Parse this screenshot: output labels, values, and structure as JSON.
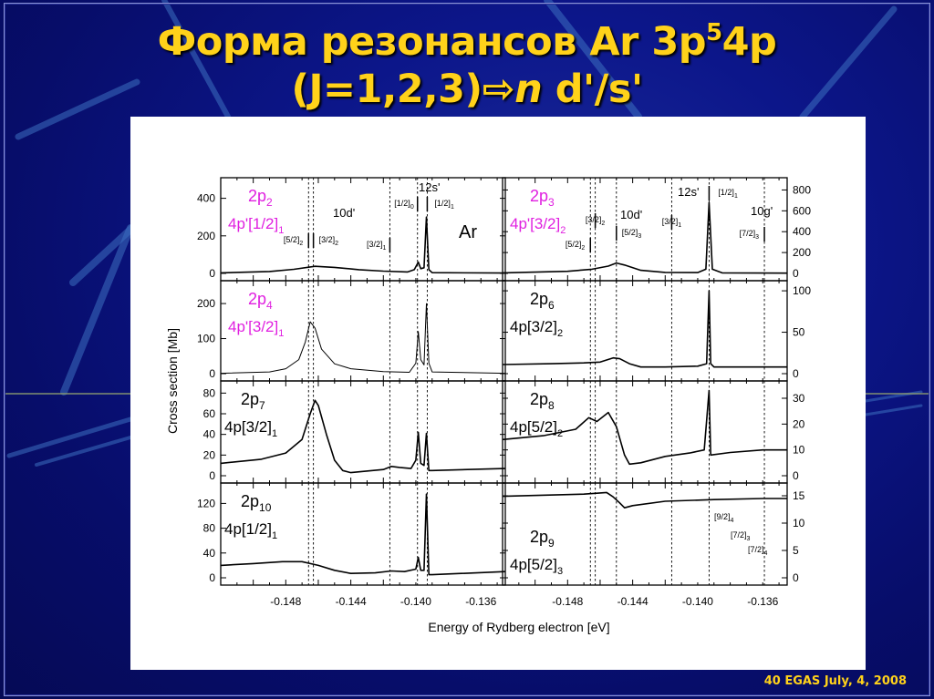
{
  "slide": {
    "title_line1_prefix": "Форма резонансов Ar 3p",
    "title_sup": "5",
    "title_line1_suffix": "4p",
    "title_line2_prefix": "(J=1,2,3)",
    "title_arrow": "⇨",
    "title_line2_n": "n",
    "title_line2_suffix": " d'/s'",
    "footer": "40 EGAS July, 4, 2008"
  },
  "chart_data": {
    "type": "line",
    "title": "Форма резонансов Ar 3p⁵4p (J=1,2,3) → n d'/s'",
    "xlabel": "Energy of Rydberg electron [eV]",
    "ylabel": "Cross section [Mb]",
    "element_label": "Ar",
    "x_ticks": [
      "-0.148",
      "-0.144",
      "-0.140",
      "-0.136"
    ],
    "xlim": [
      -0.152,
      -0.1345
    ],
    "grid": false,
    "legend": "none",
    "resonance_markers_left": [
      {
        "label": "[5/2]",
        "sub": "2",
        "x": -0.1466,
        "series": "10d'"
      },
      {
        "label": "[3/2]",
        "sub": "2",
        "x": -0.1463,
        "series": "10d'"
      },
      {
        "label": "[3/2]",
        "sub": "1",
        "x": -0.1416,
        "series": "10d'"
      },
      {
        "label": "[1/2]",
        "sub": "0",
        "x": -0.1399,
        "series": "12s'"
      },
      {
        "label": "[1/2]",
        "sub": "1",
        "x": -0.1393,
        "series": "12s'"
      }
    ],
    "resonance_markers_right": [
      {
        "label": "[5/2]",
        "sub": "2",
        "x": -0.1466,
        "series": "10d'"
      },
      {
        "label": "[3/2]",
        "sub": "2",
        "x": -0.1463,
        "series": "10d'"
      },
      {
        "label": "[5/2]",
        "sub": "3",
        "x": -0.145,
        "series": "10d'"
      },
      {
        "label": "[3/2]",
        "sub": "1",
        "x": -0.1416,
        "series": "10d'"
      },
      {
        "label": "[1/2]",
        "sub": "1",
        "x": -0.1393,
        "series": "12s'"
      },
      {
        "label": "[7/2]",
        "sub": "3",
        "x": -0.1359,
        "series": "10g'"
      }
    ],
    "group_labels_left": [
      "10d'",
      "12s'"
    ],
    "group_labels_right": [
      "10d'",
      "12s'",
      "10g'"
    ],
    "extra_right_labels": [
      {
        "label": "[9/2]",
        "sub": "4"
      },
      {
        "label": "[7/2]",
        "sub": "3"
      },
      {
        "label": "[7/2]",
        "sub": "4"
      }
    ],
    "panels": [
      {
        "id": "2p2",
        "column": "left",
        "row": 0,
        "state": "2p",
        "state_sub": "2",
        "config": "4p'[1/2]",
        "config_sub": "1",
        "color": "#e020e0",
        "yticks": [
          "0",
          "200",
          "400"
        ],
        "ylim": [
          0,
          500
        ],
        "points": [
          [
            -0.152,
            3
          ],
          [
            -0.149,
            10
          ],
          [
            -0.1475,
            22
          ],
          [
            -0.1462,
            38
          ],
          [
            -0.145,
            32
          ],
          [
            -0.1435,
            20
          ],
          [
            -0.142,
            12
          ],
          [
            -0.1405,
            8
          ],
          [
            -0.1401,
            20
          ],
          [
            -0.13985,
            60
          ],
          [
            -0.1397,
            25
          ],
          [
            -0.1395,
            30
          ],
          [
            -0.13935,
            300
          ],
          [
            -0.1392,
            20
          ],
          [
            -0.139,
            4
          ],
          [
            -0.1345,
            2
          ]
        ]
      },
      {
        "id": "2p4",
        "column": "left",
        "row": 1,
        "state": "2p",
        "state_sub": "4",
        "config": "4p'[3/2]",
        "config_sub": "1",
        "color": "#e020e0",
        "yticks": [
          "0",
          "100",
          "200"
        ],
        "ylim": [
          0,
          260
        ],
        "points": [
          [
            -0.152,
            1
          ],
          [
            -0.149,
            5
          ],
          [
            -0.148,
            14
          ],
          [
            -0.1472,
            40
          ],
          [
            -0.1468,
            90
          ],
          [
            -0.1465,
            148
          ],
          [
            -0.1462,
            130
          ],
          [
            -0.1458,
            70
          ],
          [
            -0.145,
            28
          ],
          [
            -0.144,
            14
          ],
          [
            -0.142,
            6
          ],
          [
            -0.1404,
            4
          ],
          [
            -0.14,
            30
          ],
          [
            -0.13985,
            120
          ],
          [
            -0.1397,
            40
          ],
          [
            -0.1395,
            25
          ],
          [
            -0.13935,
            200
          ],
          [
            -0.1392,
            30
          ],
          [
            -0.139,
            5
          ],
          [
            -0.1345,
            1
          ]
        ]
      },
      {
        "id": "2p7",
        "column": "left",
        "row": 2,
        "state": "2p",
        "state_sub": "7",
        "config": "4p[3/2]",
        "config_sub": "1",
        "color": "#000000",
        "yticks": [
          "0",
          "20",
          "40",
          "60",
          "80"
        ],
        "ylim": [
          0,
          90
        ],
        "points": [
          [
            -0.152,
            12
          ],
          [
            -0.1495,
            16
          ],
          [
            -0.148,
            22
          ],
          [
            -0.147,
            35
          ],
          [
            -0.1465,
            60
          ],
          [
            -0.1462,
            73
          ],
          [
            -0.146,
            68
          ],
          [
            -0.1455,
            40
          ],
          [
            -0.145,
            15
          ],
          [
            -0.1445,
            5
          ],
          [
            -0.144,
            3
          ],
          [
            -0.142,
            6
          ],
          [
            -0.1415,
            9
          ],
          [
            -0.141,
            8
          ],
          [
            -0.1403,
            7
          ],
          [
            -0.14,
            15
          ],
          [
            -0.13985,
            42
          ],
          [
            -0.1397,
            12
          ],
          [
            -0.1395,
            10
          ],
          [
            -0.13935,
            41
          ],
          [
            -0.1392,
            5
          ],
          [
            -0.139,
            5
          ],
          [
            -0.1345,
            7
          ]
        ]
      },
      {
        "id": "2p10",
        "column": "left",
        "row": 3,
        "state": "2p",
        "state_sub": "10",
        "config": "4p[1/2]",
        "config_sub": "1",
        "color": "#000000",
        "yticks": [
          "0",
          "40",
          "80",
          "120"
        ],
        "ylim": [
          0,
          150
        ],
        "points": [
          [
            -0.152,
            20
          ],
          [
            -0.15,
            23
          ],
          [
            -0.1482,
            26
          ],
          [
            -0.147,
            26
          ],
          [
            -0.146,
            20
          ],
          [
            -0.145,
            12
          ],
          [
            -0.144,
            7
          ],
          [
            -0.1425,
            8
          ],
          [
            -0.1415,
            11
          ],
          [
            -0.1407,
            10
          ],
          [
            -0.14,
            14
          ],
          [
            -0.13985,
            33
          ],
          [
            -0.1397,
            12
          ],
          [
            -0.1395,
            12
          ],
          [
            -0.13935,
            135
          ],
          [
            -0.1392,
            5
          ],
          [
            -0.139,
            5
          ],
          [
            -0.1345,
            10
          ]
        ]
      },
      {
        "id": "2p3",
        "column": "right",
        "row": 0,
        "state": "2p",
        "state_sub": "3",
        "config": "4p'[3/2]",
        "config_sub": "2",
        "color": "#e020e0",
        "yticks": [
          "0",
          "200",
          "400",
          "600",
          "800"
        ],
        "ylim": [
          0,
          900
        ],
        "points": [
          [
            -0.152,
            5
          ],
          [
            -0.148,
            20
          ],
          [
            -0.1465,
            40
          ],
          [
            -0.1455,
            70
          ],
          [
            -0.145,
            100
          ],
          [
            -0.1445,
            80
          ],
          [
            -0.1435,
            30
          ],
          [
            -0.142,
            10
          ],
          [
            -0.14,
            8
          ],
          [
            -0.1395,
            40
          ],
          [
            -0.1393,
            680
          ],
          [
            -0.1391,
            40
          ],
          [
            -0.1385,
            5
          ],
          [
            -0.1345,
            3
          ]
        ]
      },
      {
        "id": "2p6",
        "column": "right",
        "row": 1,
        "state": "2p",
        "state_sub": "6",
        "config": "4p[3/2]",
        "config_sub": "2",
        "color": "#000000",
        "yticks": [
          "0",
          "50",
          "100"
        ],
        "ylim": [
          0,
          110
        ],
        "points": [
          [
            -0.152,
            11
          ],
          [
            -0.149,
            12
          ],
          [
            -0.147,
            13
          ],
          [
            -0.146,
            14
          ],
          [
            -0.1452,
            19
          ],
          [
            -0.1448,
            18
          ],
          [
            -0.1442,
            12
          ],
          [
            -0.1435,
            8
          ],
          [
            -0.142,
            8
          ],
          [
            -0.14,
            9
          ],
          [
            -0.13945,
            12
          ],
          [
            -0.1393,
            100
          ],
          [
            -0.1392,
            12
          ],
          [
            -0.139,
            8
          ],
          [
            -0.1345,
            8
          ]
        ]
      },
      {
        "id": "2p8",
        "column": "right",
        "row": 2,
        "state": "2p",
        "state_sub": "8",
        "config": "4p[5/2]",
        "config_sub": "2",
        "color": "#000000",
        "yticks": [
          "0",
          "10",
          "20",
          "30"
        ],
        "ylim": [
          0,
          36
        ],
        "points": [
          [
            -0.152,
            14
          ],
          [
            -0.1495,
            15.5
          ],
          [
            -0.1475,
            18
          ],
          [
            -0.1467,
            22.5
          ],
          [
            -0.1462,
            21
          ],
          [
            -0.1455,
            24.5
          ],
          [
            -0.145,
            19
          ],
          [
            -0.1445,
            8
          ],
          [
            -0.1442,
            4.5
          ],
          [
            -0.1435,
            5
          ],
          [
            -0.142,
            7.5
          ],
          [
            -0.1405,
            8.8
          ],
          [
            -0.1396,
            10
          ],
          [
            -0.1393,
            33
          ],
          [
            -0.1392,
            8
          ],
          [
            -0.138,
            9
          ],
          [
            -0.136,
            10
          ],
          [
            -0.1345,
            10
          ]
        ]
      },
      {
        "id": "2p9",
        "column": "right",
        "row": 3,
        "state": "2p",
        "state_sub": "9",
        "config": "4p[5/2]",
        "config_sub": "3",
        "color": "#000000",
        "yticks": [
          "0",
          "5",
          "10",
          "15"
        ],
        "ylim": [
          0,
          17
        ],
        "points": [
          [
            -0.152,
            14.9
          ],
          [
            -0.147,
            15.3
          ],
          [
            -0.1456,
            15.6
          ],
          [
            -0.1452,
            14.8
          ],
          [
            -0.1448,
            13.7
          ],
          [
            -0.1445,
            12.8
          ],
          [
            -0.144,
            13.2
          ],
          [
            -0.142,
            14.0
          ],
          [
            -0.139,
            14.3
          ],
          [
            -0.136,
            14.5
          ],
          [
            -0.1345,
            14.5
          ]
        ]
      }
    ]
  }
}
